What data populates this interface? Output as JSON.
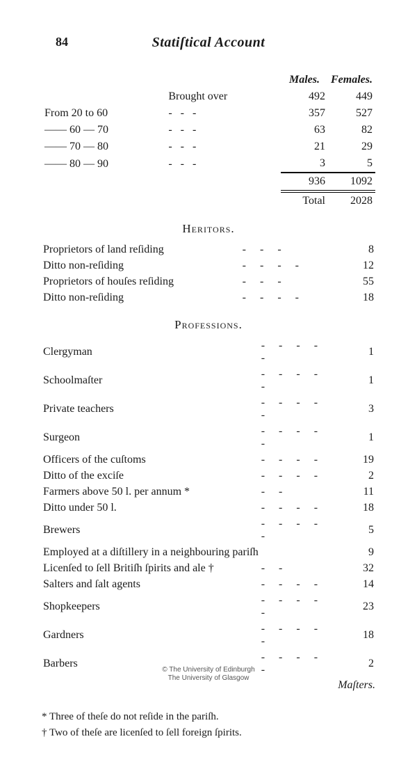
{
  "pageNumber": "84",
  "title": "Statiſtical Account",
  "ageBlock": {
    "col1": "Males.",
    "col2": "Females.",
    "broughtOverLabel": "Brought over",
    "rows": [
      {
        "label": "From 20 to 60",
        "males": "492",
        "females": "449"
      },
      {
        "label": "—— 60 — 70",
        "males": "357",
        "females": "527"
      },
      {
        "label": "—— 70 — 80",
        "males": "63",
        "females": "82"
      },
      {
        "label": "—— 80 — 90",
        "males": "21",
        "females": "29"
      },
      {
        "label": "",
        "males": "3",
        "females": "5"
      }
    ],
    "sumMales": "936",
    "sumFemales": "1092",
    "totalLabel": "Total",
    "totalValue": "2028"
  },
  "heritors": {
    "heading": "Heritors.",
    "rows": [
      {
        "label": "Proprietors of land reſiding",
        "val": "8"
      },
      {
        "label": "Ditto non-reſiding",
        "val": "12"
      },
      {
        "label": "Proprietors of houſes reſiding",
        "val": "55"
      },
      {
        "label": "Ditto non-reſiding",
        "val": "18"
      }
    ]
  },
  "professions": {
    "heading": "Professions.",
    "rows": [
      {
        "label": "Clergyman",
        "val": "1"
      },
      {
        "label": "Schoolmaſter",
        "val": "1"
      },
      {
        "label": "Private teachers",
        "val": "3"
      },
      {
        "label": "Surgeon",
        "val": "1"
      },
      {
        "label": "Officers of the cuſtoms",
        "val": "19"
      },
      {
        "label": "Ditto of the exciſe",
        "val": "2"
      },
      {
        "label": "Farmers above 50 l. per annum *",
        "val": "11"
      },
      {
        "label": "Ditto under 50 l.",
        "val": "18"
      },
      {
        "label": "Brewers",
        "val": "5"
      },
      {
        "label": "Employed at a diſtillery in a neighbouring pariſh",
        "val": "9"
      },
      {
        "label": "Licenſed to ſell Britiſh ſpirits and ale †",
        "val": "32"
      },
      {
        "label": "Salters and ſalt agents",
        "val": "14"
      },
      {
        "label": "Shopkeepers",
        "val": "23"
      },
      {
        "label": "Gardners",
        "val": "18"
      },
      {
        "label": "Barbers",
        "val": "2"
      }
    ],
    "tail": "Maſters."
  },
  "footnotes": {
    "a": "* Three of theſe do not reſide in the pariſh.",
    "b": "† Two of theſe are licenſed to ſell foreign ſpirits."
  },
  "copyright": {
    "line1": "© The University of Edinburgh",
    "line2": "The University of Glasgow"
  }
}
